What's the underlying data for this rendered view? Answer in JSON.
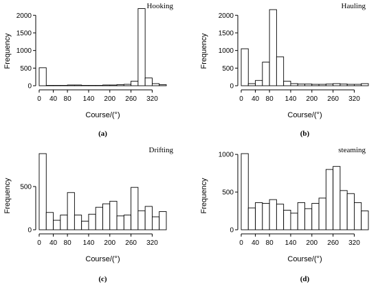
{
  "chart_data": [
    {
      "type": "bar",
      "title": "Hooking",
      "caption": "(a)",
      "xlabel": "Course/(°)",
      "ylabel": "Frequency",
      "bin_edges": [
        0,
        20,
        40,
        60,
        80,
        100,
        120,
        140,
        160,
        180,
        200,
        220,
        240,
        260,
        280,
        300,
        320,
        340,
        360
      ],
      "values": [
        510,
        10,
        10,
        10,
        20,
        20,
        10,
        10,
        10,
        20,
        20,
        30,
        40,
        130,
        2190,
        220,
        60,
        30
      ],
      "x_ticks": [
        0,
        40,
        80,
        140,
        200,
        260,
        320
      ],
      "y_ticks": [
        0,
        500,
        1000,
        1500,
        2000
      ],
      "ylim": [
        0,
        2200
      ],
      "xlim": [
        0,
        360
      ]
    },
    {
      "type": "bar",
      "title": "Hauling",
      "caption": "(b)",
      "xlabel": "Course/(°)",
      "ylabel": "Frequency",
      "bin_edges": [
        0,
        20,
        40,
        60,
        80,
        100,
        120,
        140,
        160,
        180,
        200,
        220,
        240,
        260,
        280,
        300,
        320,
        340,
        360
      ],
      "values": [
        1050,
        60,
        150,
        670,
        2160,
        820,
        130,
        60,
        50,
        50,
        40,
        40,
        50,
        60,
        50,
        40,
        40,
        60
      ],
      "x_ticks": [
        0,
        40,
        80,
        140,
        200,
        260,
        320
      ],
      "y_ticks": [
        0,
        500,
        1000,
        1500,
        2000
      ],
      "ylim": [
        0,
        2200
      ],
      "xlim": [
        0,
        360
      ]
    },
    {
      "type": "bar",
      "title": "Drifting",
      "caption": "(c)",
      "xlabel": "Course/(°)",
      "ylabel": "Frequency",
      "bin_edges": [
        0,
        20,
        40,
        60,
        80,
        100,
        120,
        140,
        160,
        180,
        200,
        220,
        240,
        260,
        280,
        300,
        320,
        340,
        360
      ],
      "values": [
        880,
        200,
        110,
        170,
        430,
        170,
        100,
        180,
        260,
        300,
        330,
        160,
        170,
        490,
        220,
        270,
        150,
        210
      ],
      "x_ticks": [
        0,
        40,
        80,
        140,
        200,
        260,
        320
      ],
      "y_ticks": [
        0,
        500
      ],
      "ylim": [
        0,
        880
      ],
      "xlim": [
        0,
        360
      ]
    },
    {
      "type": "bar",
      "title": "steaming",
      "caption": "(d)",
      "xlabel": "Course/(°)",
      "ylabel": "Frequency",
      "bin_edges": [
        0,
        20,
        40,
        60,
        80,
        100,
        120,
        140,
        160,
        180,
        200,
        220,
        240,
        260,
        280,
        300,
        320,
        340,
        360
      ],
      "values": [
        1010,
        290,
        360,
        350,
        400,
        340,
        260,
        220,
        360,
        280,
        350,
        420,
        800,
        840,
        520,
        480,
        360,
        250
      ],
      "x_ticks": [
        0,
        40,
        80,
        140,
        200,
        260,
        320
      ],
      "y_ticks": [
        0,
        500,
        1000
      ],
      "ylim": [
        0,
        1010
      ],
      "xlim": [
        0,
        360
      ]
    }
  ]
}
